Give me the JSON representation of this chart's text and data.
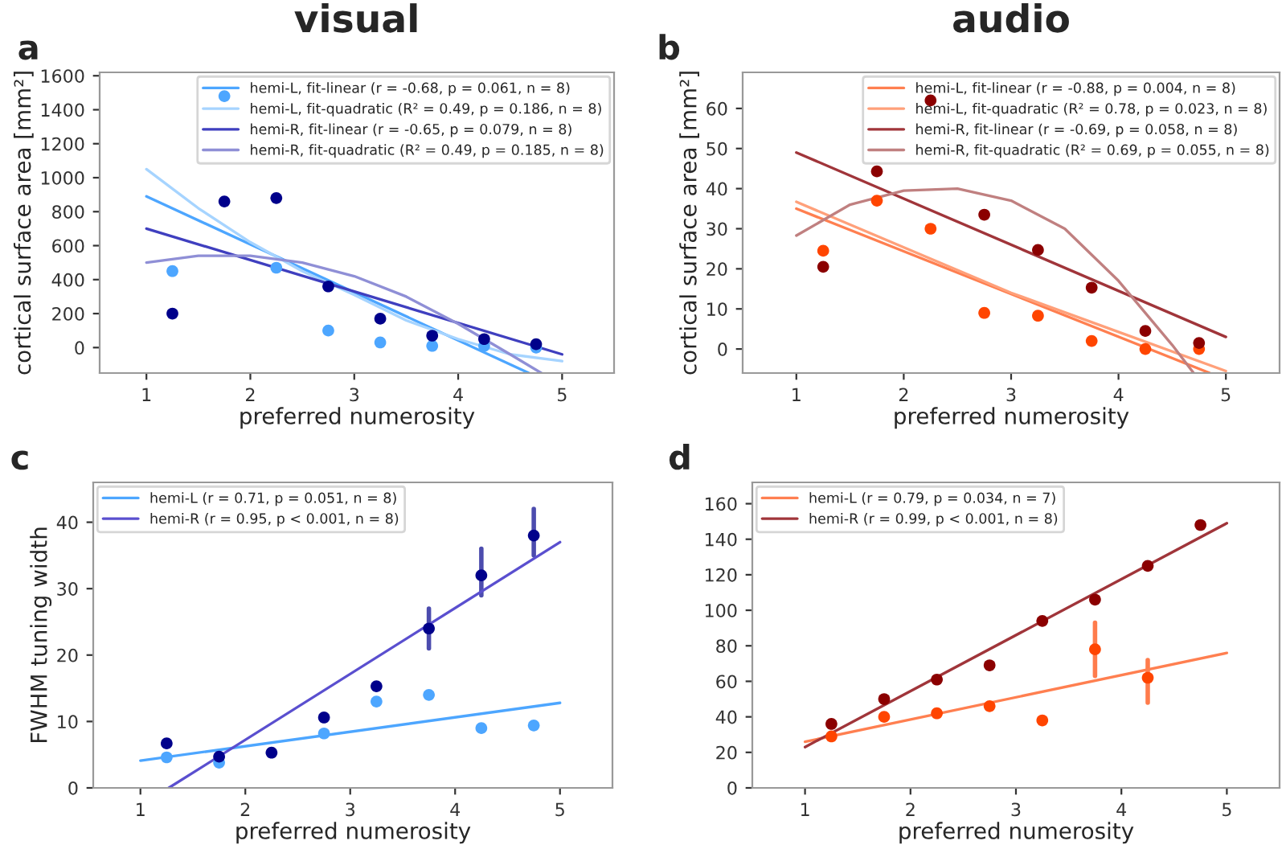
{
  "chart_data": [
    {
      "type": "scatter",
      "title": "visual",
      "xlabel": "preferred numerosity",
      "ylabel": "cortical surface area [mm²]",
      "annotations": [
        "a"
      ],
      "x": [
        1.25,
        1.75,
        2.25,
        2.75,
        3.25,
        3.75,
        4.25,
        4.75
      ],
      "xlim": [
        0.55,
        5.5
      ],
      "ylim": [
        -150,
        1620
      ],
      "xticks": [
        1,
        2,
        3,
        4,
        5
      ],
      "yticks": [
        0,
        200,
        400,
        600,
        800,
        1000,
        1200,
        1400,
        1600
      ],
      "legend": "top right",
      "grid": false,
      "series": [
        {
          "type": "scatter",
          "color": "#4da6ff",
          "values": [
            450,
            1480,
            470,
            100,
            30,
            10,
            10,
            0
          ]
        },
        {
          "type": "scatter",
          "color": "#00008b",
          "values": [
            200,
            860,
            880,
            360,
            170,
            70,
            50,
            20
          ]
        },
        {
          "type": "line",
          "name": "hemi-L, fit-linear (r = -0.68, p = 0.061, n = 8)",
          "color": "#4da6ff",
          "x": [
            1,
            4.68
          ],
          "values": [
            890,
            -150
          ]
        },
        {
          "type": "line",
          "name": "hemi-L, fit-quadratic (R² = 0.49, p = 0.186, n = 8)",
          "color": "#a6d4ff",
          "x": [
            1,
            1.5,
            2,
            2.5,
            3,
            3.5,
            4,
            4.5,
            5
          ],
          "values": [
            1050,
            820,
            620,
            450,
            310,
            160,
            50,
            -40,
            -80
          ]
        },
        {
          "type": "line",
          "name": "hemi-R, fit-linear (r = -0.65, p = 0.079, n = 8)",
          "color": "#3f3fbf",
          "x": [
            1,
            5
          ],
          "values": [
            700,
            -40
          ]
        },
        {
          "type": "line",
          "name": "hemi-R, fit-quadratic (R² = 0.49, p = 0.185, n = 8)",
          "color": "#8f8fd6",
          "x": [
            1,
            1.5,
            2,
            2.5,
            3,
            3.5,
            4,
            4.5,
            4.8
          ],
          "values": [
            500,
            540,
            540,
            500,
            420,
            300,
            140,
            -40,
            -150
          ]
        }
      ]
    },
    {
      "type": "scatter",
      "title": "audio",
      "xlabel": "preferred numerosity",
      "ylabel": "cortical surface area [mm²]",
      "annotations": [
        "b"
      ],
      "x": [
        1.25,
        1.75,
        2.25,
        2.75,
        3.25,
        3.75,
        4.25,
        4.75
      ],
      "xlim": [
        0.5,
        5.5
      ],
      "ylim": [
        -6,
        69
      ],
      "xticks": [
        1,
        2,
        3,
        4,
        5
      ],
      "yticks": [
        0,
        10,
        20,
        30,
        40,
        50,
        60
      ],
      "legend": "top right",
      "grid": false,
      "series": [
        {
          "type": "scatter",
          "color": "#ff4500",
          "values": [
            24.5,
            37,
            30,
            9,
            8.3,
            2,
            0,
            0
          ]
        },
        {
          "type": "scatter",
          "color": "#8b0000",
          "values": [
            20.5,
            44.3,
            62,
            33.5,
            24.7,
            15.3,
            4.5,
            1.5
          ]
        },
        {
          "type": "line",
          "name": "hemi-L, fit-linear (r = -0.88, p = 0.004, n = 8)",
          "color": "#ff7f50",
          "x": [
            1,
            4.85
          ],
          "values": [
            35,
            -6
          ]
        },
        {
          "type": "line",
          "name": "hemi-L, fit-quadratic (R² = 0.78, p = 0.023, n = 8)",
          "color": "#ffa07a",
          "x": [
            1,
            3,
            5
          ],
          "values": [
            36.7,
            14,
            -5.5
          ]
        },
        {
          "type": "line",
          "name": "hemi-R, fit-linear (r = -0.69, p = 0.058, n = 8)",
          "color": "#a0353a",
          "x": [
            1,
            5
          ],
          "values": [
            49,
            3
          ]
        },
        {
          "type": "line",
          "name": "hemi-R, fit-quadratic (R² = 0.69, p = 0.055, n = 8)",
          "color": "#c08080",
          "x": [
            1,
            1.5,
            2,
            2.5,
            3,
            3.5,
            4,
            4.5,
            4.7
          ],
          "values": [
            28.3,
            36,
            39.5,
            40,
            37,
            30,
            17,
            1,
            -6
          ]
        }
      ]
    },
    {
      "type": "scatter",
      "xlabel": "preferred numerosity",
      "ylabel": "FWHM tuning width",
      "annotations": [
        "c"
      ],
      "x": [
        1.25,
        1.75,
        2.25,
        2.75,
        3.25,
        3.75,
        4.25,
        4.75
      ],
      "xlim": [
        0.55,
        5.5
      ],
      "ylim": [
        0,
        46
      ],
      "xticks": [
        1,
        2,
        3,
        4,
        5
      ],
      "yticks": [
        0,
        10,
        20,
        30,
        40
      ],
      "legend": "top left",
      "grid": false,
      "series": [
        {
          "type": "scatter",
          "color": "#4da6ff",
          "values": [
            4.6,
            3.8,
            null,
            8.2,
            13,
            14,
            9,
            9.4
          ]
        },
        {
          "type": "scatter",
          "color": "#00008b",
          "values": [
            6.7,
            4.7,
            5.3,
            10.6,
            15.3,
            24,
            32,
            38
          ],
          "errors": [
            null,
            null,
            null,
            null,
            null,
            [
              21,
              27
            ],
            [
              29,
              36
            ],
            [
              35,
              42
            ]
          ]
        },
        {
          "type": "line",
          "name": "hemi-L (r = 0.71, p = 0.051, n = 8)",
          "color": "#4da6ff",
          "x": [
            1,
            5
          ],
          "values": [
            4.1,
            12.8
          ]
        },
        {
          "type": "line",
          "name": "hemi-R (r = 0.95, p < 0.001, n = 8)",
          "color": "#5a4fcf",
          "x": [
            1.27,
            5
          ],
          "values": [
            0,
            37
          ]
        }
      ]
    },
    {
      "type": "scatter",
      "xlabel": "preferred numerosity",
      "annotations": [
        "d"
      ],
      "x": [
        1.25,
        1.75,
        2.25,
        2.75,
        3.25,
        3.75,
        4.25,
        4.75
      ],
      "xlim": [
        0.5,
        5.5
      ],
      "ylim": [
        0,
        172
      ],
      "xticks": [
        1,
        2,
        3,
        4,
        5
      ],
      "yticks": [
        0,
        20,
        40,
        60,
        80,
        100,
        120,
        140,
        160
      ],
      "legend": "top left",
      "grid": false,
      "series": [
        {
          "type": "scatter",
          "color": "#ff4500",
          "values": [
            29,
            40,
            42,
            46,
            38,
            78,
            62,
            null
          ],
          "errors": [
            null,
            null,
            null,
            null,
            null,
            [
              63,
              93
            ],
            [
              48,
              72
            ],
            null
          ]
        },
        {
          "type": "scatter",
          "color": "#8b0000",
          "values": [
            36,
            50,
            61,
            69,
            94,
            106,
            125,
            148
          ]
        },
        {
          "type": "line",
          "name": "hemi-L (r = 0.79, p = 0.034, n = 7)",
          "color": "#ff7f50",
          "x": [
            1,
            5
          ],
          "values": [
            26,
            76
          ]
        },
        {
          "type": "line",
          "name": "hemi-R (r = 0.99, p < 0.001, n = 8)",
          "color": "#a0353a",
          "x": [
            1,
            5
          ],
          "values": [
            23,
            149
          ]
        }
      ]
    }
  ]
}
